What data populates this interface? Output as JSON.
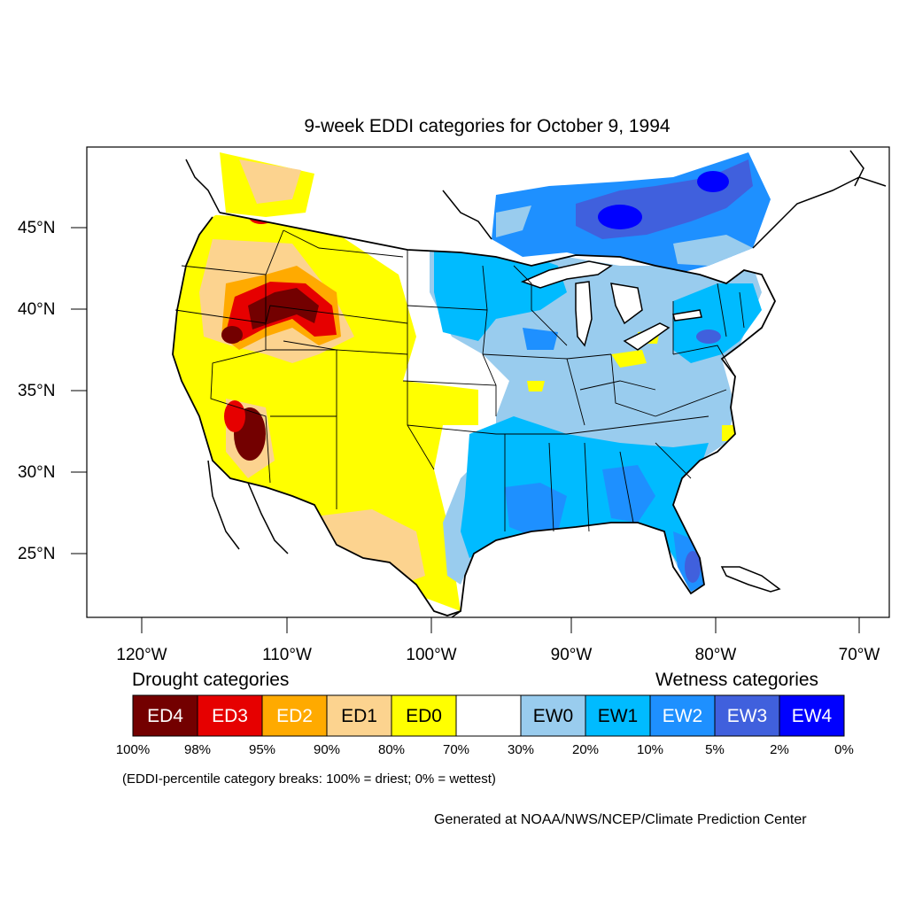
{
  "title": "9-week EDDI categories for October 9, 1994",
  "map": {
    "lat_labels": [
      "45°N",
      "40°N",
      "35°N",
      "30°N",
      "25°N"
    ],
    "lon_labels": [
      "120°W",
      "110°W",
      "100°W",
      "90°W",
      "80°W",
      "70°W"
    ],
    "colors": {
      "ED4": "#730000",
      "ED3": "#e60000",
      "ED2": "#ffaa00",
      "ED1": "#fcd38f",
      "ED0": "#ffff00",
      "neutral": "#ffffff",
      "EW0": "#99ccee",
      "EW1": "#00bbff",
      "EW2": "#1e90ff",
      "EW3": "#4060dd",
      "EW4": "#0000ff"
    }
  },
  "legend": {
    "drought_heading": "Drought categories",
    "wetness_heading": "Wetness categories",
    "boxes": [
      {
        "label": "ED4",
        "color": "#730000",
        "text_color": "#ffffff"
      },
      {
        "label": "ED3",
        "color": "#e60000",
        "text_color": "#ffffff"
      },
      {
        "label": "ED2",
        "color": "#ffaa00",
        "text_color": "#ffffff"
      },
      {
        "label": "ED1",
        "color": "#fcd38f",
        "text_color": "#000000"
      },
      {
        "label": "ED0",
        "color": "#ffff00",
        "text_color": "#000000"
      },
      {
        "label": "",
        "color": "#ffffff",
        "text_color": "#000000"
      },
      {
        "label": "EW0",
        "color": "#99ccee",
        "text_color": "#000000"
      },
      {
        "label": "EW1",
        "color": "#00bbff",
        "text_color": "#000000"
      },
      {
        "label": "EW2",
        "color": "#1e90ff",
        "text_color": "#ffffff"
      },
      {
        "label": "EW3",
        "color": "#4060dd",
        "text_color": "#ffffff"
      },
      {
        "label": "EW4",
        "color": "#0000ff",
        "text_color": "#ffffff"
      }
    ],
    "breaks": [
      "100%",
      "98%",
      "95%",
      "90%",
      "80%",
      "70%",
      "30%",
      "20%",
      "10%",
      "5%",
      "2%",
      "0%"
    ],
    "note": "(EDDI-percentile category breaks: 100% = driest; 0% = wettest)"
  },
  "credit": "Generated at NOAA/NWS/NCEP/Climate Prediction Center"
}
